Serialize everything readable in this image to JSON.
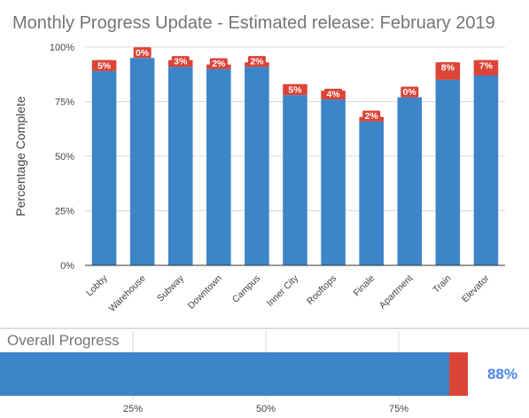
{
  "chart_data": [
    {
      "type": "bar",
      "stacked": true,
      "title": "Monthly Progress Update - Estimated release: February 2019",
      "ylabel": "Percentage Complete",
      "xlabel": "",
      "ylim": [
        0,
        100
      ],
      "yticks": [
        0,
        25,
        50,
        75,
        100
      ],
      "ytick_labels": [
        "0%",
        "25%",
        "50%",
        "75%",
        "100%"
      ],
      "grid": true,
      "categories": [
        "Lobby",
        "Warehouse",
        "Subway",
        "Downtown",
        "Campus",
        "Inner City",
        "Rooftops",
        "Finale",
        "Apartment",
        "Train",
        "Elevator"
      ],
      "series": [
        {
          "color": "#3d85c6",
          "values": [
            89,
            95,
            91,
            90,
            91,
            78,
            76,
            66,
            77,
            85,
            87
          ]
        },
        {
          "color": "#db4437",
          "values": [
            5,
            0,
            3,
            2,
            2,
            5,
            4,
            2,
            0,
            8,
            7
          ],
          "labels": [
            "5%",
            "0%",
            "3%",
            "2%",
            "2%",
            "5%",
            "4%",
            "2%",
            "0%",
            "8%",
            "7%"
          ]
        }
      ]
    },
    {
      "type": "bar",
      "orientation": "horizontal",
      "title": "Overall Progress",
      "xlim": [
        0,
        100
      ],
      "xticks": [
        25,
        50,
        75
      ],
      "xtick_labels": [
        "25%",
        "50%",
        "75%"
      ],
      "grid": true,
      "series": [
        {
          "color": "#3d85c6",
          "values": [
            84.5
          ]
        },
        {
          "color": "#db4437",
          "values": [
            3.5
          ]
        }
      ],
      "total_label": "88%"
    }
  ]
}
